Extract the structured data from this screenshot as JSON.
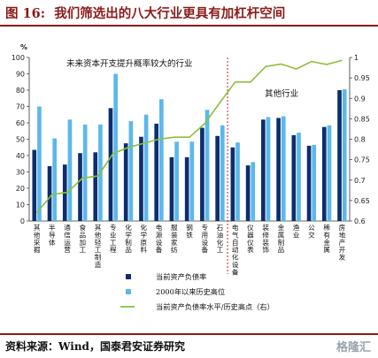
{
  "header": {
    "figure_label": "图 16:",
    "title": "我们筛选出的八大行业更具有加杠杆空间"
  },
  "footer": {
    "source": "资料来源：Wind，国泰君安证券研究",
    "watermark": "格隆汇"
  },
  "colors": {
    "title": "#8b1a1a",
    "current": "#0c2e6e",
    "historical": "#5bb8ec",
    "ratio_line": "#8cbf3f",
    "divider": "#d21e1e"
  },
  "chart_data": {
    "type": "bar",
    "y_unit_label": "%",
    "ylim": [
      0,
      100
    ],
    "y_ticks": [
      0,
      10,
      20,
      30,
      40,
      50,
      60,
      70,
      80,
      90,
      100
    ],
    "y2lim": [
      0.6,
      1.0
    ],
    "y2_ticks": [
      "0.6",
      "0.65",
      "0.7",
      "0.75",
      "0.8",
      "0.85",
      "0.9",
      "0.95",
      "1"
    ],
    "categories": [
      "其他采掘",
      "半导体",
      "通信运营",
      "食品加工",
      "其他轻工制造",
      "专业工程",
      "化学制品",
      "化学原料",
      "电源设备",
      "服装家纺",
      "钢铁",
      "专用设备",
      "石油化工",
      "电气自动化设备",
      "仪器仪表",
      "装修装饰",
      "金属制品",
      "渔业",
      "公交",
      "稀有金属",
      "房地产开发"
    ],
    "series": [
      {
        "name": "当前资产负债率",
        "type": "bar",
        "axis": "left",
        "values": [
          43.5,
          33.5,
          34.5,
          41.5,
          42,
          69,
          47.5,
          51.5,
          59.5,
          39,
          39,
          57,
          52,
          45,
          34,
          62,
          63,
          52.5,
          46,
          57.5,
          80
        ]
      },
      {
        "name": "2000年以来历史高位",
        "type": "bar",
        "axis": "left",
        "values": [
          70,
          50.5,
          62,
          59,
          59,
          90,
          61,
          65,
          74.5,
          48.5,
          48.5,
          68,
          58.5,
          48,
          36,
          63.5,
          64,
          54,
          46.5,
          58.5,
          80.5
        ]
      },
      {
        "name": "当前资产负债率水平/历史高点（右）",
        "type": "line",
        "axis": "right",
        "values": [
          0.62,
          0.665,
          0.67,
          0.705,
          0.71,
          0.765,
          0.78,
          0.79,
          0.8,
          0.805,
          0.805,
          0.838,
          0.89,
          0.94,
          0.94,
          0.978,
          0.984,
          0.972,
          0.99,
          0.983,
          0.993
        ]
      }
    ],
    "annotations": {
      "left_group": "未来资本开支提升概率较大的行业",
      "right_group": "其他行业",
      "divider_after_index": 12
    },
    "legend_position": "bottom-center",
    "grid": false
  }
}
